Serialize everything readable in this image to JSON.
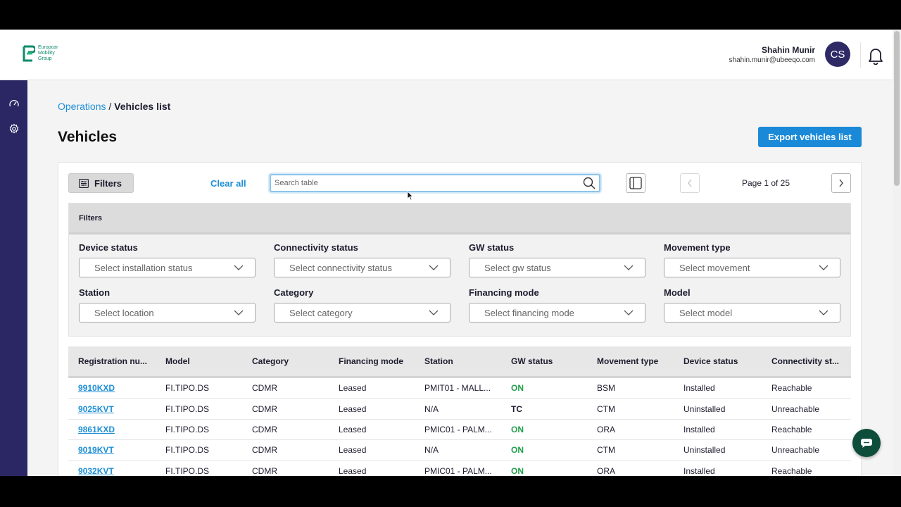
{
  "header": {
    "logo_text": [
      "Europcar",
      "Mobility",
      "Group"
    ],
    "user_name": "Shahin Munir",
    "user_email": "shahin.munir@ubeeqo.com",
    "avatar_initials": "CS"
  },
  "breadcrumb": {
    "parent": "Operations",
    "separator": "/",
    "current": "Vehicles list"
  },
  "page": {
    "title": "Vehicles",
    "export_label": "Export vehicles list"
  },
  "toolbar": {
    "filters_label": "Filters",
    "clear_all_label": "Clear all",
    "search_placeholder": "Search table",
    "page_info": "Page 1 of 25"
  },
  "filter_panel": {
    "title": "Filters",
    "fields": [
      {
        "label": "Device status",
        "placeholder": "Select installation status"
      },
      {
        "label": "Connectivity status",
        "placeholder": "Select connectivity status"
      },
      {
        "label": "GW status",
        "placeholder": "Select gw status"
      },
      {
        "label": "Movement type",
        "placeholder": "Select movement"
      },
      {
        "label": "Station",
        "placeholder": "Select location"
      },
      {
        "label": "Category",
        "placeholder": "Select category"
      },
      {
        "label": "Financing mode",
        "placeholder": "Select financing mode"
      },
      {
        "label": "Model",
        "placeholder": "Select model"
      }
    ]
  },
  "table": {
    "columns": [
      "Registration nu...",
      "Model",
      "Category",
      "Financing mode",
      "Station",
      "GW status",
      "Movement type",
      "Device status",
      "Connectivity st..."
    ],
    "rows": [
      [
        "9910KXD",
        "FI.TIPO.DS",
        "CDMR",
        "Leased",
        "PMIT01 - MALL...",
        "ON",
        "BSM",
        "Installed",
        "Reachable"
      ],
      [
        "9025KVT",
        "FI.TIPO.DS",
        "CDMR",
        "Leased",
        "N/A",
        "TC",
        "CTM",
        "Uninstalled",
        "Unreachable"
      ],
      [
        "9861KXD",
        "FI.TIPO.DS",
        "CDMR",
        "Leased",
        "PMIC01 - PALM...",
        "ON",
        "ORA",
        "Installed",
        "Reachable"
      ],
      [
        "9019KVT",
        "FI.TIPO.DS",
        "CDMR",
        "Leased",
        "N/A",
        "ON",
        "CTM",
        "Uninstalled",
        "Unreachable"
      ],
      [
        "9032KVT",
        "FI.TIPO.DS",
        "CDMR",
        "Leased",
        "PMIC01 - PALM...",
        "ON",
        "ORA",
        "Installed",
        "Reachable"
      ]
    ]
  },
  "colors": {
    "sidebar": "#2b2764",
    "accent": "#1a8ad8",
    "status_on": "#22a04b",
    "chat": "#0d4d3a"
  },
  "icons": [
    "dashboard-icon",
    "settings-icon",
    "bell-icon",
    "search-icon",
    "filter-icon",
    "column-toggle-icon",
    "chevron-left-icon",
    "chevron-right-icon",
    "chevron-down-icon",
    "chat-icon"
  ]
}
